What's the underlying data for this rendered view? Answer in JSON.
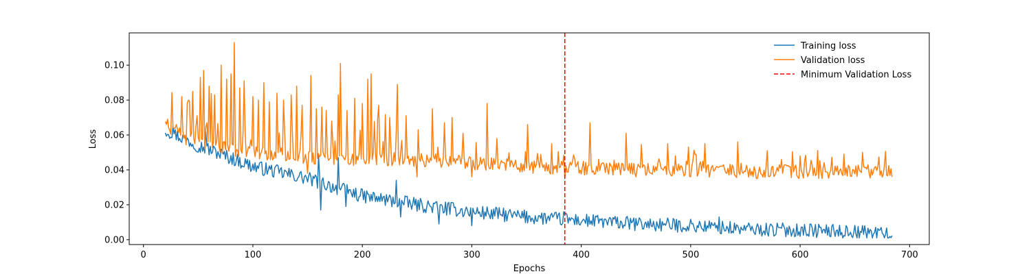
{
  "chart_data": {
    "type": "line",
    "title": "",
    "xlabel": "Epochs",
    "ylabel": "Loss",
    "xlim": [
      -13,
      718
    ],
    "ylim": [
      -0.0028,
      0.1185
    ],
    "xticks": [
      0,
      100,
      200,
      300,
      400,
      500,
      600,
      700
    ],
    "xtick_labels": [
      "0",
      "100",
      "200",
      "300",
      "400",
      "500",
      "600",
      "700"
    ],
    "yticks": [
      0.0,
      0.02,
      0.04,
      0.06,
      0.08,
      0.1
    ],
    "ytick_labels": [
      "0.00",
      "0.02",
      "0.04",
      "0.06",
      "0.08",
      "0.10"
    ],
    "grid": false,
    "legend_position": "top-right",
    "x_start": 20,
    "x_end": 684,
    "series": [
      {
        "name": "Training loss",
        "color": "#1f77b4",
        "trend": [
          [
            20,
            0.063
          ],
          [
            50,
            0.054
          ],
          [
            100,
            0.042
          ],
          [
            150,
            0.035
          ],
          [
            200,
            0.025
          ],
          [
            250,
            0.02
          ],
          [
            300,
            0.016
          ],
          [
            350,
            0.013
          ],
          [
            400,
            0.011
          ],
          [
            450,
            0.009
          ],
          [
            500,
            0.008
          ],
          [
            550,
            0.006
          ],
          [
            600,
            0.0055
          ],
          [
            650,
            0.0045
          ],
          [
            684,
            0.0035
          ]
        ],
        "noise": 0.004,
        "peaks": [
          [
            27,
            0.065
          ],
          [
            57,
            0.062
          ],
          [
            160,
            0.048
          ],
          [
            178,
            0.047
          ],
          [
            231,
            0.034
          ],
          [
            384,
            0.016
          ],
          [
            526,
            0.013
          ]
        ],
        "dips": [
          [
            162,
            0.017
          ],
          [
            185,
            0.019
          ],
          [
            235,
            0.013
          ],
          [
            270,
            0.009
          ],
          [
            300,
            0.008
          ]
        ]
      },
      {
        "name": "Validation loss",
        "color": "#ff7f0e",
        "trend": [
          [
            20,
            0.064
          ],
          [
            40,
            0.058
          ],
          [
            80,
            0.052
          ],
          [
            120,
            0.049
          ],
          [
            160,
            0.047
          ],
          [
            200,
            0.046
          ],
          [
            250,
            0.046
          ],
          [
            300,
            0.044
          ],
          [
            350,
            0.042
          ],
          [
            400,
            0.041
          ],
          [
            450,
            0.041
          ],
          [
            500,
            0.04
          ],
          [
            550,
            0.039
          ],
          [
            600,
            0.039
          ],
          [
            684,
            0.039
          ]
        ],
        "noise": 0.004,
        "peaks": [
          [
            21,
            0.066
          ],
          [
            30,
            0.066
          ],
          [
            35,
            0.082
          ],
          [
            40,
            0.078
          ],
          [
            45,
            0.085
          ],
          [
            49,
            0.071
          ],
          [
            52,
            0.093
          ],
          [
            55,
            0.097
          ],
          [
            60,
            0.088
          ],
          [
            65,
            0.083
          ],
          [
            71,
            0.1
          ],
          [
            76,
            0.092
          ],
          [
            80,
            0.095
          ],
          [
            83,
            0.113
          ],
          [
            88,
            0.087
          ],
          [
            92,
            0.091
          ],
          [
            100,
            0.082
          ],
          [
            105,
            0.08
          ],
          [
            110,
            0.09
          ],
          [
            115,
            0.079
          ],
          [
            122,
            0.084
          ],
          [
            128,
            0.08
          ],
          [
            135,
            0.083
          ],
          [
            140,
            0.088
          ],
          [
            145,
            0.077
          ],
          [
            153,
            0.094
          ],
          [
            158,
            0.075
          ],
          [
            163,
            0.076
          ],
          [
            167,
            0.074
          ],
          [
            172,
            0.068
          ],
          [
            178,
            0.083
          ],
          [
            180,
            0.101
          ],
          [
            186,
            0.074
          ],
          [
            193,
            0.081
          ],
          [
            200,
            0.078
          ],
          [
            205,
            0.092
          ],
          [
            208,
            0.095
          ],
          [
            215,
            0.077
          ],
          [
            225,
            0.07
          ],
          [
            232,
            0.089
          ],
          [
            240,
            0.071
          ],
          [
            251,
            0.063
          ],
          [
            264,
            0.075
          ],
          [
            275,
            0.067
          ],
          [
            282,
            0.07
          ],
          [
            292,
            0.061
          ],
          [
            314,
            0.078
          ],
          [
            323,
            0.058
          ],
          [
            351,
            0.066
          ],
          [
            373,
            0.055
          ],
          [
            408,
            0.067
          ],
          [
            441,
            0.061
          ],
          [
            479,
            0.055
          ],
          [
            513,
            0.055
          ],
          [
            543,
            0.056
          ],
          [
            570,
            0.051
          ],
          [
            640,
            0.049
          ],
          [
            657,
            0.05
          ]
        ],
        "dips": [
          [
            100,
            0.04
          ],
          [
            150,
            0.038
          ],
          [
            200,
            0.037
          ],
          [
            250,
            0.036
          ],
          [
            300,
            0.036
          ],
          [
            385,
            0.035
          ],
          [
            450,
            0.036
          ],
          [
            500,
            0.036
          ],
          [
            560,
            0.035
          ],
          [
            620,
            0.035
          ]
        ]
      }
    ],
    "vlines": [
      {
        "name": "Minimum Validation Loss",
        "x": 385,
        "color": "#ff0000",
        "style": "dashed"
      }
    ]
  }
}
